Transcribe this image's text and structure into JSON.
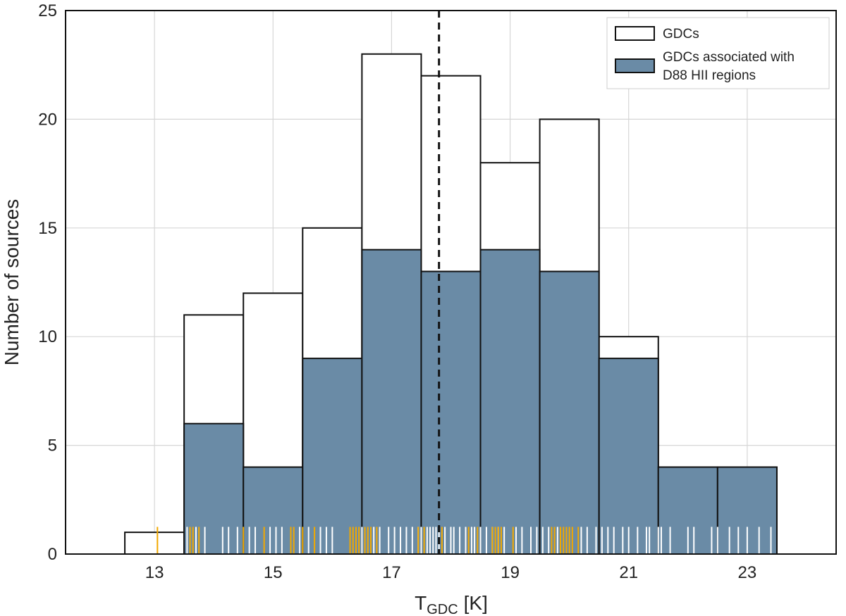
{
  "chart_data": {
    "type": "bar",
    "xlabel_main": "T",
    "xlabel_sub": "GDC",
    "xlabel_unit": "[K]",
    "ylabel": "Number of sources",
    "xlim": [
      11.5,
      24.5
    ],
    "ylim": [
      0,
      25
    ],
    "x_ticks": [
      "13",
      "15",
      "17",
      "19",
      "21",
      "23"
    ],
    "y_ticks": [
      "0",
      "5",
      "10",
      "15",
      "20",
      "25"
    ],
    "grid": true,
    "bin_edges": [
      12.5,
      13.5,
      14.5,
      15.5,
      16.5,
      17.5,
      18.5,
      19.5,
      20.5,
      21.5,
      22.5,
      23.5
    ],
    "series": [
      {
        "name": "GDCs",
        "color": "#ffffff",
        "values": [
          1,
          11,
          12,
          15,
          23,
          22,
          18,
          20,
          10,
          4,
          4
        ]
      },
      {
        "name": "GDCs associated with D88 HII regions",
        "color": "#6a8ba6",
        "values": [
          0,
          6,
          4,
          9,
          14,
          13,
          14,
          13,
          9,
          4,
          4
        ]
      }
    ],
    "median_line": {
      "x": 17.8,
      "style": "dashed",
      "color": "#111111"
    },
    "legend": {
      "position": "top-right",
      "entries": [
        {
          "lines": [
            "GDCs"
          ],
          "color": "#ffffff"
        },
        {
          "lines": [
            "GDCs associated with",
            "D88 HII regions"
          ],
          "color": "#6a8ba6"
        }
      ]
    },
    "rug": {
      "height_units": 1.25,
      "white_color": "#ffffff",
      "orange_color": "#f2a900",
      "white": [
        13.55,
        13.7,
        13.85,
        14.15,
        14.25,
        14.4,
        14.6,
        14.7,
        14.95,
        15.05,
        15.15,
        15.45,
        15.6,
        15.8,
        15.9,
        16.0,
        16.5,
        16.7,
        16.8,
        16.95,
        17.05,
        17.15,
        17.25,
        17.35,
        17.45,
        17.5,
        17.6,
        17.65,
        17.7,
        17.75,
        17.8,
        17.9,
        18.0,
        18.05,
        18.15,
        18.25,
        18.35,
        18.4,
        18.5,
        18.6,
        18.7,
        18.8,
        18.9,
        19.1,
        19.2,
        19.35,
        19.45,
        19.55,
        19.65,
        19.8,
        20.2,
        20.3,
        20.45,
        20.55,
        20.65,
        20.75,
        20.9,
        21.0,
        21.15,
        21.3,
        21.35,
        21.5,
        21.55,
        21.7,
        22.0,
        22.1,
        22.4,
        22.5,
        22.7,
        22.85,
        23.0,
        23.2,
        23.4
      ],
      "orange": [
        13.05,
        13.6,
        13.65,
        13.75,
        14.5,
        14.85,
        15.3,
        15.35,
        15.5,
        15.7,
        16.3,
        16.35,
        16.4,
        16.45,
        16.55,
        16.6,
        16.65,
        16.75,
        17.45,
        17.55,
        17.85,
        18.3,
        18.45,
        18.7,
        18.75,
        18.8,
        18.85,
        19.05,
        19.7,
        19.75,
        19.85,
        19.9,
        19.95,
        20.0,
        20.05,
        20.15
      ]
    }
  }
}
